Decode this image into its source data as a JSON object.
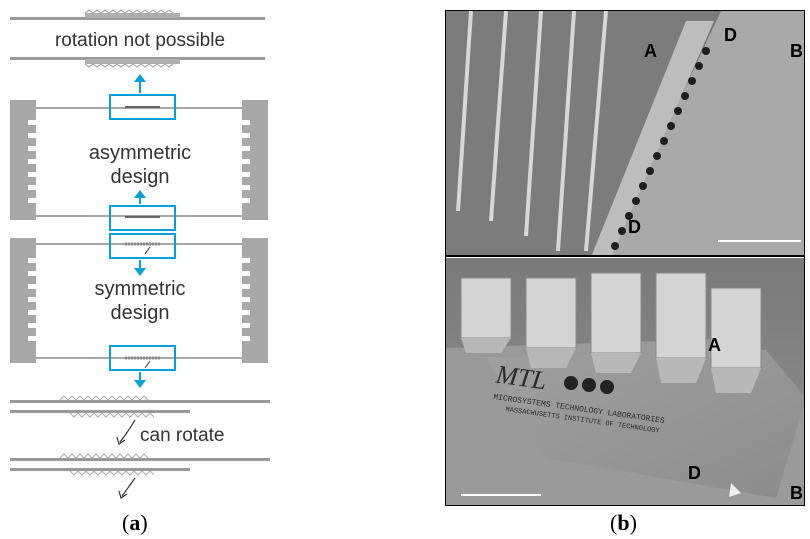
{
  "panel_a": {
    "label_rotation_not_possible": "rotation not possible",
    "label_asymmetric": "asymmetric",
    "label_asymmetric_design": "design",
    "label_symmetric": "symmetric",
    "label_symmetric_design": "design",
    "label_can_rotate": "can rotate",
    "caption_letter": "a"
  },
  "panel_b": {
    "top": {
      "label_a": "A",
      "label_d_top": "D",
      "label_d_bottom": "D",
      "label_b": "B"
    },
    "bottom": {
      "label_a": "A",
      "label_d": "D",
      "label_b": "B",
      "logo_text": "MTL",
      "logo_line1": "MICROSYSTEMS TECHNOLOGY LABORATORIES",
      "logo_line2": "MASSACHUSETTS INSTITUTE OF TECHNOLOGY"
    },
    "caption_letter": "b"
  },
  "colors": {
    "accent_cyan": "#00a0d8",
    "frame_gray": "#9a9a9a"
  }
}
